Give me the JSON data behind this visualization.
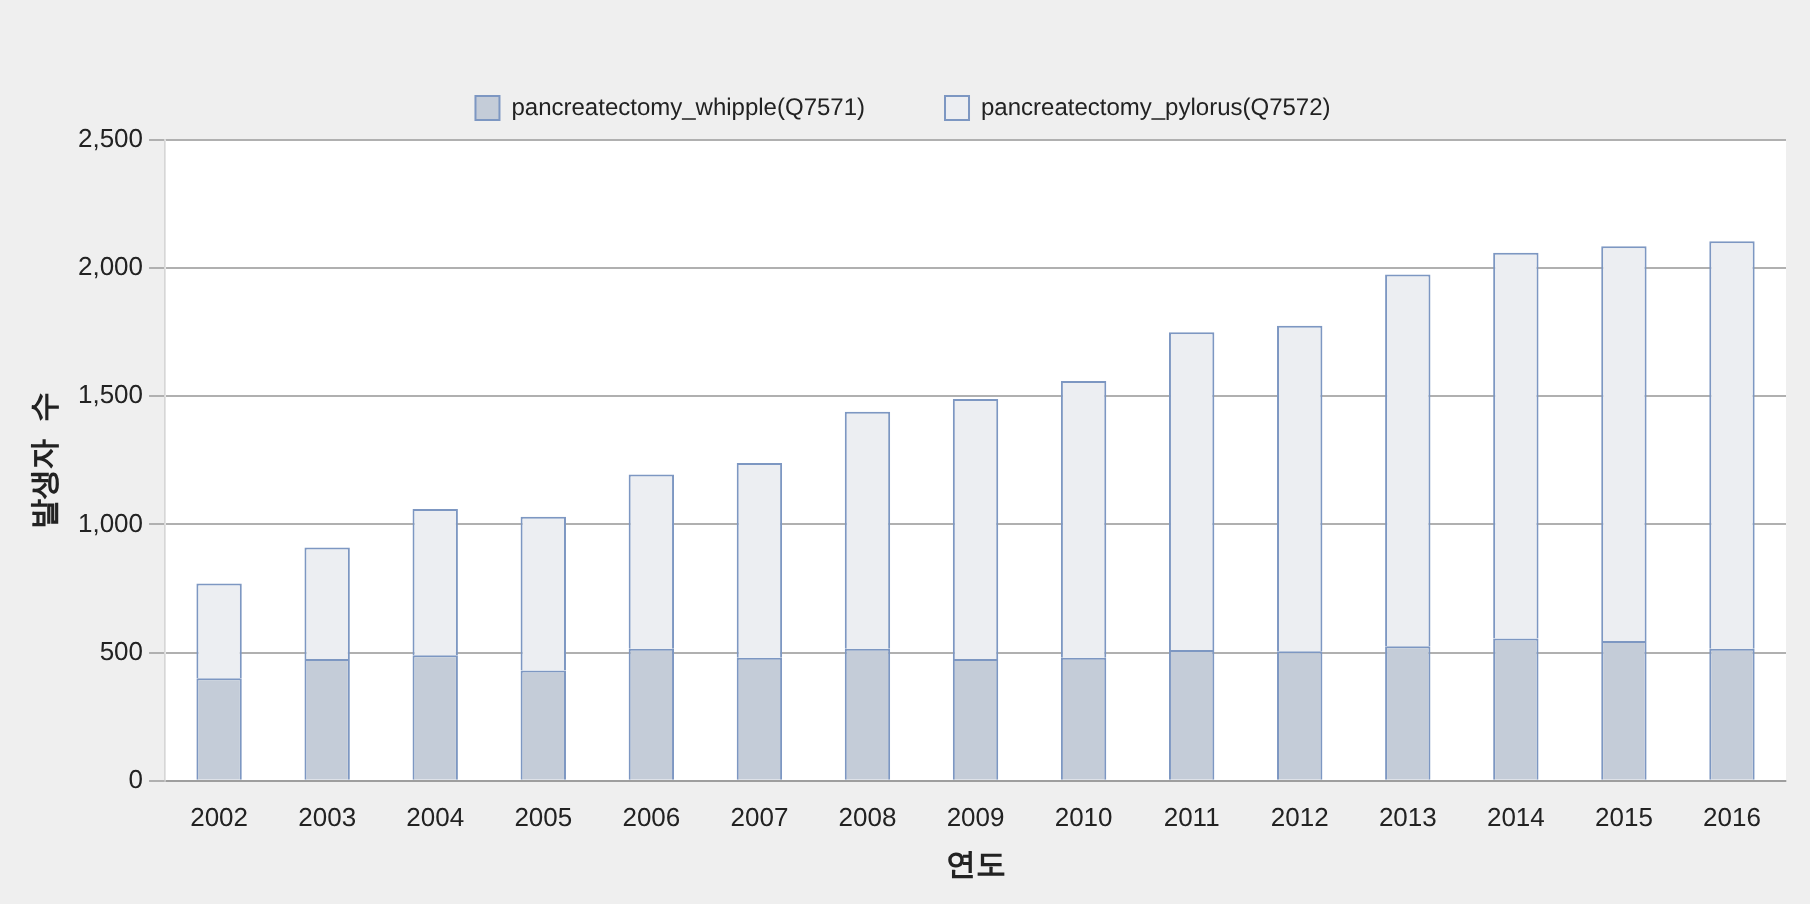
{
  "chart_data": {
    "type": "bar",
    "stacked": true,
    "xlabel": "연도",
    "ylabel": "발생자  수",
    "categories": [
      "2002",
      "2003",
      "2004",
      "2005",
      "2006",
      "2007",
      "2008",
      "2009",
      "2010",
      "2011",
      "2012",
      "2013",
      "2014",
      "2015",
      "2016"
    ],
    "series": [
      {
        "name": "pancreatectomy_whipple(Q7571)",
        "color": "#c4ccd8",
        "values": [
          400,
          475,
          490,
          430,
          515,
          480,
          515,
          475,
          480,
          510,
          505,
          525,
          555,
          545,
          515
        ]
      },
      {
        "name": "pancreatectomy_pylorus(Q7572)",
        "color": "#eceef2",
        "values": [
          370,
          435,
          570,
          600,
          680,
          760,
          925,
          1015,
          1080,
          1240,
          1270,
          1450,
          1505,
          1540,
          1590
        ]
      }
    ],
    "ylim": [
      0,
      2500
    ],
    "yticks": [
      0,
      500,
      {
        "value": 1000,
        "label": "1,000"
      },
      {
        "value": 1500,
        "label": "1,500"
      },
      {
        "value": 2000,
        "label": "2,000"
      },
      {
        "value": 2500,
        "label": "2,500"
      }
    ],
    "grid": "y",
    "legend": "top"
  }
}
